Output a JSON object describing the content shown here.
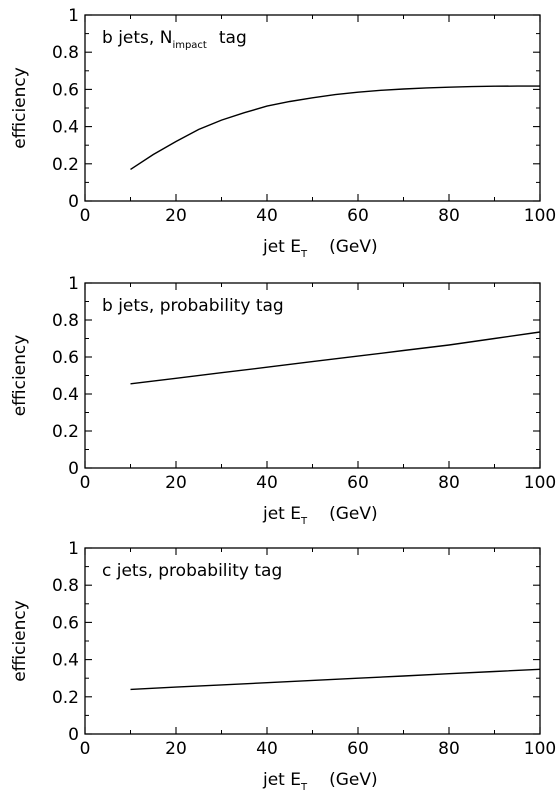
{
  "chart_data": [
    {
      "type": "line",
      "label": "b jets, N",
      "label_sub": "impact",
      "label_tail": "tag",
      "xlabel": "jet E",
      "xlabel_sub": "T",
      "xlabel_unit": "(GeV)",
      "ylabel": "efficiency",
      "xlim": [
        0,
        100
      ],
      "ylim": [
        0,
        1
      ],
      "xticks": [
        0,
        20,
        40,
        60,
        80,
        100
      ],
      "yticks": [
        0,
        0.2,
        0.4,
        0.6,
        0.8,
        1
      ],
      "ytick_labels": [
        "0",
        "0.2",
        "0.4",
        "0.6",
        "0.8",
        "1"
      ],
      "grid": false,
      "series": [
        {
          "x": [
            10,
            15,
            20,
            25,
            30,
            35,
            40,
            45,
            50,
            55,
            60,
            65,
            70,
            75,
            80,
            85,
            90,
            95,
            100
          ],
          "y": [
            0.17,
            0.25,
            0.32,
            0.385,
            0.435,
            0.475,
            0.51,
            0.535,
            0.555,
            0.572,
            0.585,
            0.595,
            0.602,
            0.608,
            0.612,
            0.615,
            0.617,
            0.618,
            0.618
          ]
        }
      ]
    },
    {
      "type": "line",
      "label": "b jets, probability tag",
      "label_sub": "",
      "label_tail": "",
      "xlabel": "jet E",
      "xlabel_sub": "T",
      "xlabel_unit": "(GeV)",
      "ylabel": "efficiency",
      "xlim": [
        0,
        100
      ],
      "ylim": [
        0,
        1
      ],
      "xticks": [
        0,
        20,
        40,
        60,
        80,
        100
      ],
      "yticks": [
        0,
        0.2,
        0.4,
        0.6,
        0.8,
        1
      ],
      "ytick_labels": [
        "0",
        "0.2",
        "0.4",
        "0.6",
        "0.8",
        "1"
      ],
      "grid": false,
      "series": [
        {
          "x": [
            10,
            20,
            30,
            40,
            50,
            60,
            70,
            80,
            90,
            100
          ],
          "y": [
            0.455,
            0.485,
            0.515,
            0.545,
            0.575,
            0.605,
            0.635,
            0.665,
            0.7,
            0.735
          ]
        }
      ]
    },
    {
      "type": "line",
      "label": "c jets, probability tag",
      "label_sub": "",
      "label_tail": "",
      "xlabel": "jet E",
      "xlabel_sub": "T",
      "xlabel_unit": "(GeV)",
      "ylabel": "efficiency",
      "xlim": [
        0,
        100
      ],
      "ylim": [
        0,
        1
      ],
      "xticks": [
        0,
        20,
        40,
        60,
        80,
        100
      ],
      "yticks": [
        0,
        0.2,
        0.4,
        0.6,
        0.8,
        1
      ],
      "ytick_labels": [
        "0",
        "0.2",
        "0.4",
        "0.6",
        "0.8",
        "1"
      ],
      "grid": false,
      "series": [
        {
          "x": [
            10,
            20,
            30,
            40,
            50,
            60,
            70,
            80,
            90,
            100
          ],
          "y": [
            0.24,
            0.252,
            0.264,
            0.276,
            0.288,
            0.3,
            0.312,
            0.324,
            0.336,
            0.348
          ]
        }
      ]
    }
  ]
}
